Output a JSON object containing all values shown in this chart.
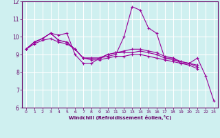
{
  "xlabel": "Windchill (Refroidissement éolien,°C)",
  "background_color": "#cff0f0",
  "grid_color": "#ffffff",
  "line_color": "#990099",
  "xlim": [
    -0.5,
    23.5
  ],
  "ylim": [
    6,
    12
  ],
  "yticks": [
    6,
    7,
    8,
    9,
    10,
    11,
    12
  ],
  "xticks": [
    0,
    1,
    2,
    3,
    4,
    5,
    6,
    7,
    8,
    9,
    10,
    11,
    12,
    13,
    14,
    15,
    16,
    17,
    18,
    19,
    20,
    21,
    22,
    23
  ],
  "series": [
    [
      9.3,
      9.7,
      9.9,
      10.2,
      10.1,
      10.2,
      9.0,
      8.5,
      8.5,
      8.8,
      8.9,
      9.0,
      10.0,
      11.7,
      11.5,
      10.5,
      10.2,
      8.8,
      8.8,
      8.5,
      8.5,
      8.8,
      7.8,
      6.4
    ],
    [
      9.3,
      9.7,
      9.9,
      10.2,
      9.8,
      9.7,
      9.3,
      8.8,
      8.8,
      8.8,
      9.0,
      9.1,
      9.2,
      9.3,
      9.3,
      9.2,
      9.1,
      8.9,
      8.8,
      8.6,
      8.5,
      8.4,
      null,
      null
    ],
    [
      9.3,
      9.7,
      9.9,
      10.2,
      9.8,
      9.7,
      9.3,
      8.8,
      8.8,
      8.8,
      9.0,
      9.1,
      9.1,
      9.1,
      9.2,
      9.1,
      9.0,
      8.8,
      8.7,
      8.6,
      8.5,
      8.3,
      null,
      null
    ],
    [
      9.3,
      9.6,
      9.8,
      9.9,
      9.7,
      9.6,
      9.3,
      8.8,
      8.7,
      8.7,
      8.8,
      8.9,
      8.9,
      9.0,
      9.0,
      8.9,
      8.8,
      8.7,
      8.6,
      8.5,
      8.4,
      8.2,
      null,
      null
    ]
  ]
}
